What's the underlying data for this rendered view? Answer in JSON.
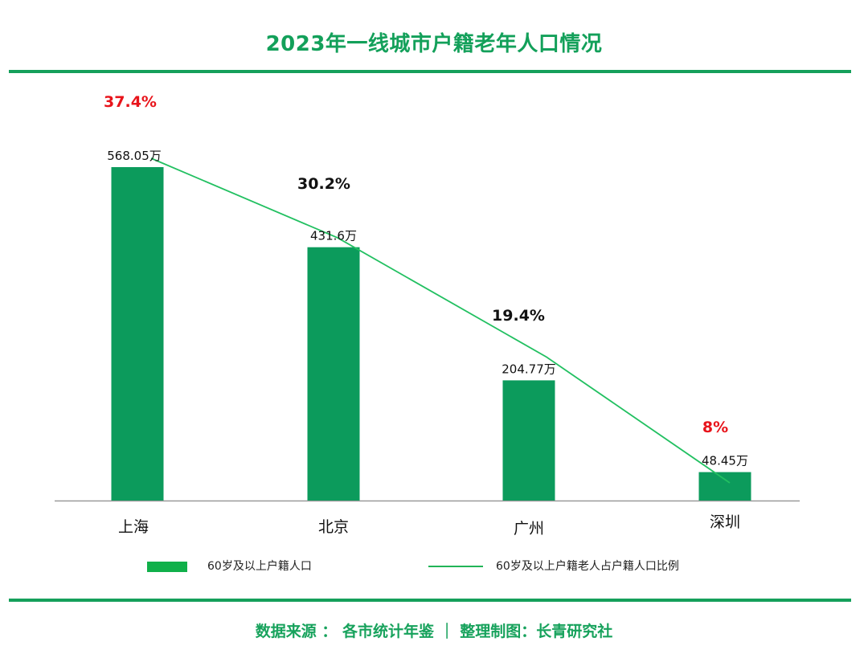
{
  "colors": {
    "brand": "#15a05b",
    "bar": "#0c9b5c",
    "line": "#22c061",
    "highlight": "#e8141b",
    "text": "#111111"
  },
  "chart_data": {
    "type": "bar",
    "title": "2023年一线城市户籍老年人口情况",
    "categories": [
      "上海",
      "北京",
      "广州",
      "深圳"
    ],
    "series": [
      {
        "name": "60岁及以上户籍人口",
        "type": "bar",
        "values": [
          568.05,
          431.6,
          204.77,
          48.45
        ],
        "labels": [
          "568.05万",
          "431.6万",
          "204.77万",
          "48.45万"
        ],
        "unit": "万"
      },
      {
        "name": "60岁及以上户籍老人占户籍人口比例",
        "type": "line",
        "values": [
          37.4,
          30.2,
          19.4,
          8
        ],
        "labels": [
          "37.4%",
          "30.2%",
          "19.4%",
          "8%"
        ],
        "label_highlight": [
          true,
          false,
          false,
          true
        ],
        "unit": "%"
      }
    ],
    "legend_position": "bottom",
    "grid": false,
    "ylim": [
      0,
      600
    ]
  },
  "footer": {
    "text": "数据来源 ： 各市统计年鉴  ｜   整理制图：长青研究社"
  }
}
